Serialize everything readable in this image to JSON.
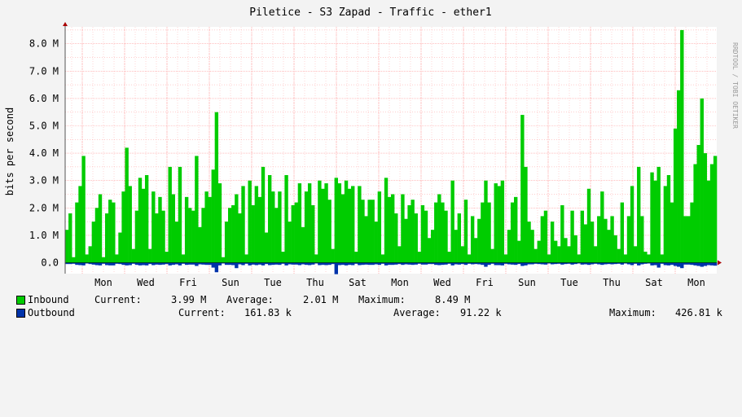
{
  "chart_data": {
    "type": "area",
    "title": "Piletice - S3 Zapad - Traffic - ether1",
    "ylabel": "bits per second",
    "watermark": "RRDTOOL / TOBI OETIKER",
    "ylim": [
      -0.5,
      8.5
    ],
    "y_unit": "M bits/s",
    "yticks": [
      "0.0",
      "1.0 M",
      "2.0 M",
      "3.0 M",
      "4.0 M",
      "5.0 M",
      "6.0 M",
      "7.0 M",
      "8.0 M"
    ],
    "day_labels": [
      "Mon",
      "Wed",
      "Fri",
      "Sun",
      "Tue",
      "Thu",
      "Sat",
      "Mon",
      "Wed",
      "Fri",
      "Sun",
      "Tue",
      "Thu",
      "Sat",
      "Mon"
    ],
    "grid": true,
    "colors": {
      "inbound": "#00cc00",
      "outbound": "#0033aa",
      "grid": "#ff9999",
      "background": "#ffffff",
      "canvas": "#f3f3f3"
    },
    "series": [
      {
        "name": "Inbound",
        "values": [
          1.2,
          1.8,
          0.2,
          2.2,
          2.8,
          3.9,
          0.3,
          0.6,
          1.5,
          2.0,
          2.5,
          0.2,
          1.8,
          2.3,
          2.2,
          0.3,
          1.1,
          2.6,
          4.2,
          2.8,
          0.5,
          1.9,
          3.1,
          2.7,
          3.2,
          0.5,
          2.6,
          1.8,
          2.4,
          1.9,
          0.4,
          3.5,
          2.5,
          1.5,
          3.5,
          0.3,
          2.4,
          2.0,
          1.9,
          3.9,
          1.3,
          2.0,
          2.6,
          2.4,
          3.4,
          5.5,
          2.9,
          0.2,
          1.5,
          2.0,
          2.1,
          2.5,
          1.8,
          2.8,
          0.3,
          3.0,
          2.1,
          2.8,
          2.4,
          3.5,
          1.1,
          3.2,
          2.6,
          2.0,
          2.6,
          0.4,
          3.2,
          1.5,
          2.1,
          2.2,
          2.9,
          1.3,
          2.6,
          2.9,
          2.1,
          0.3,
          3.0,
          2.7,
          2.9,
          2.3,
          0.5,
          3.1,
          2.9,
          2.5,
          3.0,
          2.7,
          2.8,
          0.4,
          2.8,
          2.3,
          1.7,
          2.3,
          2.3,
          1.5,
          2.6,
          0.3,
          3.1,
          2.4,
          2.5,
          1.8,
          0.6,
          2.5,
          1.6,
          2.1,
          2.3,
          1.8,
          0.4,
          2.1,
          1.9,
          0.9,
          1.2,
          2.2,
          2.5,
          2.2,
          1.9,
          0.4,
          3.0,
          1.2,
          1.8,
          0.6,
          2.3,
          0.3,
          1.7,
          0.9,
          1.6,
          2.2,
          3.0,
          2.2,
          0.5,
          2.9,
          2.8,
          3.0,
          0.3,
          1.2,
          2.2,
          2.4,
          0.8,
          5.4,
          3.5,
          1.5,
          1.2,
          0.5,
          0.8,
          1.7,
          1.9,
          0.3,
          1.5,
          0.8,
          0.6,
          2.1,
          0.9,
          0.6,
          1.9,
          1.0,
          0.3,
          1.9,
          1.4,
          2.7,
          1.5,
          0.6,
          1.7,
          2.6,
          1.6,
          1.2,
          1.7,
          1.0,
          0.5,
          2.2,
          0.3,
          1.7,
          2.8,
          0.6,
          3.5,
          1.7,
          0.4,
          0.3,
          3.3,
          3.0,
          3.5,
          0.3,
          2.8,
          3.2,
          2.2,
          4.9,
          6.3,
          8.5,
          1.7,
          1.7,
          2.2,
          3.6,
          4.3,
          6.0,
          4.0,
          3.0,
          3.6,
          3.9
        ]
      },
      {
        "name": "Outbound",
        "values": [
          -0.05,
          -0.05,
          -0.04,
          -0.08,
          -0.09,
          -0.1,
          -0.03,
          -0.05,
          -0.07,
          -0.09,
          -0.1,
          -0.04,
          -0.09,
          -0.1,
          -0.1,
          -0.04,
          -0.05,
          -0.08,
          -0.1,
          -0.09,
          -0.04,
          -0.08,
          -0.1,
          -0.09,
          -0.1,
          -0.05,
          -0.09,
          -0.07,
          -0.08,
          -0.07,
          -0.05,
          -0.1,
          -0.08,
          -0.06,
          -0.1,
          -0.04,
          -0.08,
          -0.07,
          -0.07,
          -0.12,
          -0.06,
          -0.07,
          -0.08,
          -0.08,
          -0.18,
          -0.35,
          -0.1,
          -0.03,
          -0.08,
          -0.08,
          -0.09,
          -0.2,
          -0.06,
          -0.09,
          -0.04,
          -0.1,
          -0.07,
          -0.09,
          -0.07,
          -0.1,
          -0.05,
          -0.09,
          -0.08,
          -0.07,
          -0.08,
          -0.04,
          -0.1,
          -0.06,
          -0.07,
          -0.07,
          -0.09,
          -0.06,
          -0.08,
          -0.09,
          -0.07,
          -0.03,
          -0.09,
          -0.08,
          -0.09,
          -0.08,
          -0.05,
          -0.42,
          -0.09,
          -0.08,
          -0.1,
          -0.08,
          -0.09,
          -0.04,
          -0.09,
          -0.08,
          -0.07,
          -0.08,
          -0.08,
          -0.06,
          -0.08,
          -0.04,
          -0.1,
          -0.08,
          -0.08,
          -0.07,
          -0.05,
          -0.08,
          -0.06,
          -0.07,
          -0.08,
          -0.07,
          -0.04,
          -0.07,
          -0.07,
          -0.05,
          -0.05,
          -0.08,
          -0.09,
          -0.08,
          -0.07,
          -0.04,
          -0.1,
          -0.06,
          -0.07,
          -0.05,
          -0.08,
          -0.04,
          -0.06,
          -0.05,
          -0.06,
          -0.08,
          -0.15,
          -0.08,
          -0.04,
          -0.09,
          -0.09,
          -0.1,
          -0.04,
          -0.06,
          -0.07,
          -0.08,
          -0.05,
          -0.12,
          -0.1,
          -0.06,
          -0.06,
          -0.04,
          -0.05,
          -0.06,
          -0.07,
          -0.03,
          -0.06,
          -0.05,
          -0.04,
          -0.07,
          -0.05,
          -0.04,
          -0.07,
          -0.05,
          -0.03,
          -0.07,
          -0.06,
          -0.08,
          -0.06,
          -0.04,
          -0.06,
          -0.08,
          -0.06,
          -0.05,
          -0.06,
          -0.05,
          -0.04,
          -0.07,
          -0.03,
          -0.06,
          -0.09,
          -0.04,
          -0.1,
          -0.06,
          -0.04,
          -0.03,
          -0.1,
          -0.09,
          -0.18,
          -0.04,
          -0.09,
          -0.1,
          -0.08,
          -0.12,
          -0.15,
          -0.2,
          -0.07,
          -0.07,
          -0.08,
          -0.1,
          -0.12,
          -0.15,
          -0.12,
          -0.09,
          -0.1,
          -0.11
        ]
      }
    ]
  },
  "legend": {
    "inbound": {
      "name": "Inbound",
      "current_label": "Current:",
      "current": "3.99 M",
      "average_label": "Average:",
      "average": "2.01 M",
      "maximum_label": "Maximum:",
      "maximum": "8.49 M"
    },
    "outbound": {
      "name": "Outbound",
      "current_label": "Current:",
      "current": "161.83 k",
      "average_label": "Average:",
      "average": "91.22 k",
      "maximum_label": "Maximum:",
      "maximum": "426.81 k"
    }
  }
}
